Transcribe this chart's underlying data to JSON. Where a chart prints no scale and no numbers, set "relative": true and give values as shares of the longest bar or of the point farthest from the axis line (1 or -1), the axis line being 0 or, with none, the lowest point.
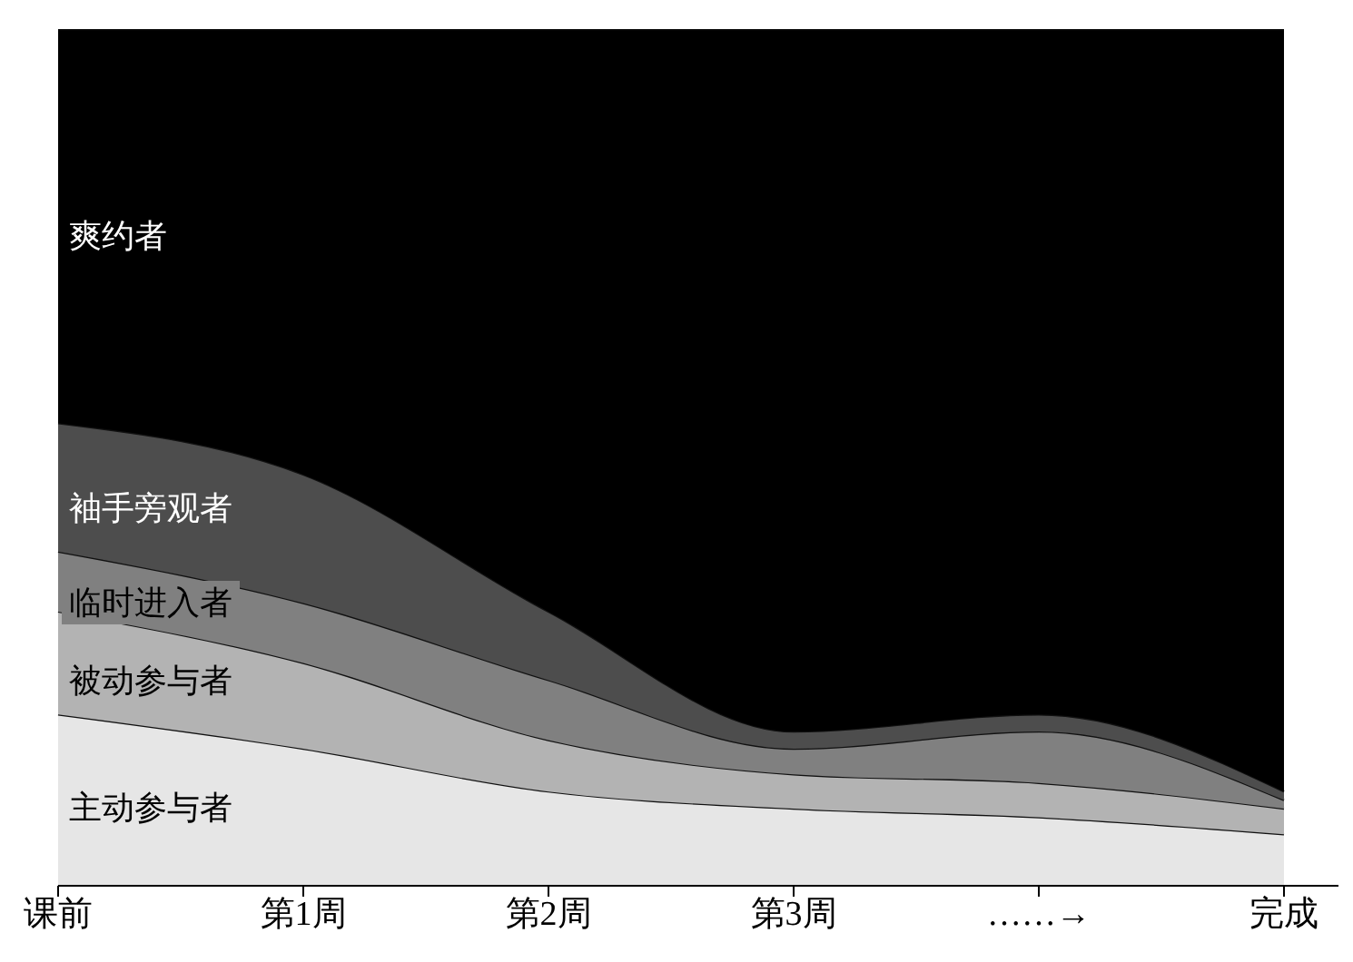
{
  "chart_data": {
    "type": "area",
    "stacked": true,
    "relative": true,
    "categories": [
      "课前",
      "第1周",
      "第2周",
      "第3周",
      "……→",
      "完成"
    ],
    "series": [
      {
        "name": "主动参与者",
        "color": "#e6e6e6",
        "values": [
          0.2,
          0.16,
          0.11,
          0.09,
          0.08,
          0.06
        ]
      },
      {
        "name": "被动参与者",
        "color": "#b3b3b3",
        "values": [
          0.12,
          0.1,
          0.06,
          0.04,
          0.04,
          0.03
        ]
      },
      {
        "name": "临时进入者",
        "color": "#808080",
        "values": [
          0.07,
          0.07,
          0.07,
          0.03,
          0.06,
          0.01
        ]
      },
      {
        "name": "袖手旁观者",
        "color": "#4d4d4d",
        "values": [
          0.15,
          0.15,
          0.08,
          0.02,
          0.02,
          0.01
        ]
      },
      {
        "name": "爽约者",
        "color": "#000000",
        "values": [
          0.46,
          0.52,
          0.68,
          0.82,
          0.8,
          0.89
        ]
      }
    ]
  }
}
